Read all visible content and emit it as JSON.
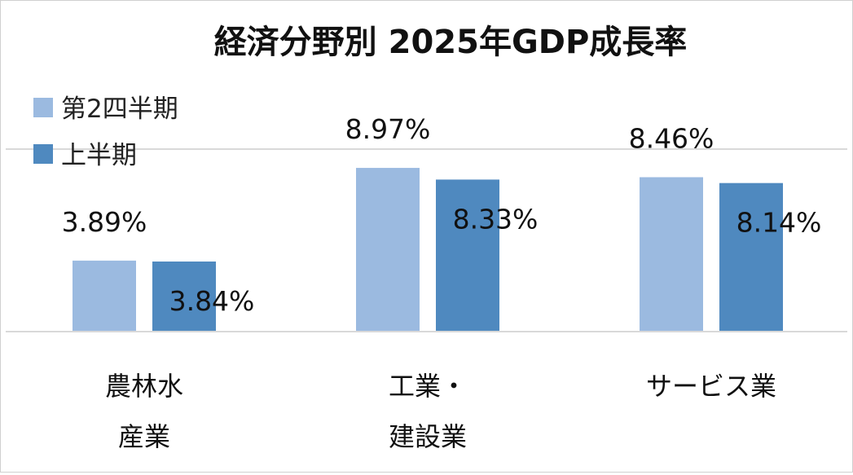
{
  "chart_data": {
    "type": "bar",
    "title": "経済分野別 2025年GDP成長率",
    "categories": [
      [
        "農林水",
        "産業"
      ],
      [
        "工業・",
        "建設業"
      ],
      [
        "サービス業"
      ]
    ],
    "series": [
      {
        "name": "第2四半期",
        "values": [
          3.89,
          8.97,
          8.46
        ],
        "labels": [
          "3.89%",
          "8.97%",
          "8.46%"
        ],
        "color": "#9bbae0"
      },
      {
        "name": "上半期",
        "values": [
          3.84,
          8.33,
          8.14
        ],
        "labels": [
          "3.84%",
          "8.33%",
          "8.14%"
        ],
        "color": "#4f89bf"
      }
    ],
    "ylim": [
      0,
      10
    ],
    "grid": true,
    "legend": "top-left",
    "gridline_color": "#d9d9d9"
  }
}
